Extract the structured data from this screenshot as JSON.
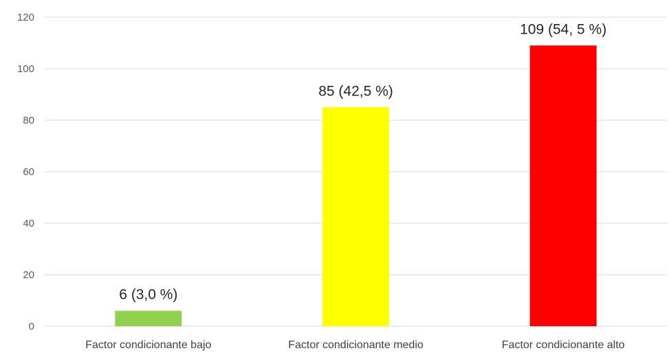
{
  "chart_data": {
    "type": "bar",
    "categories": [
      "Factor condicionante bajo",
      "Factor condicionante medio",
      "Factor condicionante alto"
    ],
    "values": [
      6,
      85,
      109
    ],
    "data_labels": [
      "6 (3,0 %)",
      "85 (42,5 %)",
      "109 (54, 5 %)"
    ],
    "colors": [
      "#92d050",
      "#ffff00",
      "#ff0000"
    ],
    "title": "",
    "xlabel": "",
    "ylabel": "",
    "ylim": [
      0,
      120
    ],
    "yticks": [
      0,
      20,
      40,
      60,
      80,
      100,
      120
    ],
    "grid": true,
    "legend": "none"
  }
}
